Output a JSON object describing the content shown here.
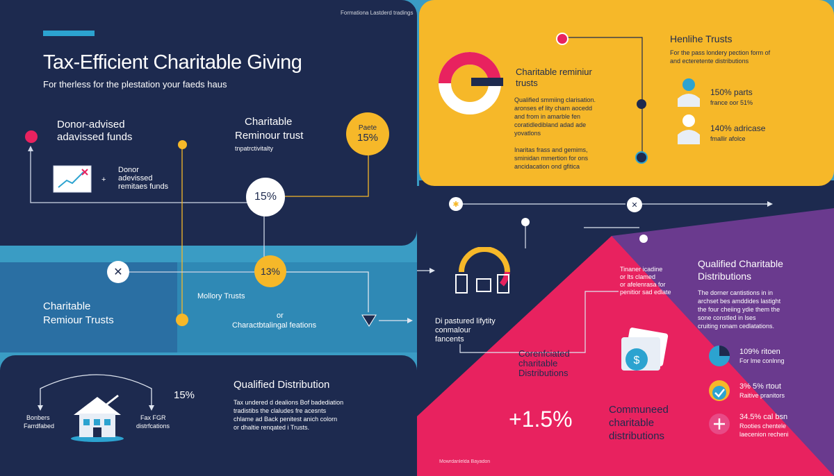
{
  "header": {
    "title": "Tax-Efficient Charitable Giving",
    "subtitle": "For therless for the plestation your faeds haus",
    "top_caption": "Formationa Lastderd tradings"
  },
  "left_panel": {
    "daf_title": [
      "Donor-advised",
      "adavissed funds"
    ],
    "daf_sub": [
      "Donor",
      "adevissed",
      "remitaes funds"
    ],
    "crt_title": [
      "Charitable",
      "Reminour trust"
    ],
    "crt_sub": "tnpatrctivitalty",
    "badge_top": [
      "Paete",
      "15%"
    ],
    "badge_center": "15%"
  },
  "middle_band": {
    "crt_title": [
      "Charitable",
      "Remiour Trusts"
    ],
    "badge": "13%",
    "note1": "Mollory Trusts",
    "note2": [
      "or",
      "Charactbtalingal feations"
    ]
  },
  "bottom_left": {
    "label_left": [
      "Bonbers",
      "Farrdfabed"
    ],
    "label_right": [
      "Fax FGR",
      "distrfcations"
    ],
    "percent": "15%",
    "qd_title": "Qualified Distribution",
    "qd_body": [
      "Tax undered d dealions Bof badediation",
      "tradistibs the claludes fre acesnts",
      "chlame ad Back penitest anich colorn",
      "or dhaltie renqated i Trusts."
    ]
  },
  "yellow_panel": {
    "crt_title": [
      "Charitable reminiur",
      "trusts"
    ],
    "crt_body": [
      "Qualified smmiing clarisation.",
      "aronses ef lity cham aocedd",
      "and from in amarble fen",
      "coratidledibland adad ade",
      "yovatlons"
    ],
    "crt_body2": [
      "Inaritas frass and gemims,",
      "sminidan mmertion for ons",
      "ancidacation ond gfitica"
    ],
    "ht_title": "Henlihe Trusts",
    "ht_body": [
      "For the pass londery pection form of",
      "and ecteretente distributions"
    ],
    "stat1": [
      "150% parts",
      "france oor 51%"
    ],
    "stat2": [
      "140% adricase",
      "fmallir afolce"
    ]
  },
  "center_lower": {
    "title": [
      "Di pastured lifytity",
      "conmalour",
      "fancents"
    ]
  },
  "pink_panel": {
    "note": [
      "Tinaner icadine",
      "or lts clamed",
      "or afelenrasa for",
      "penitior sad edlate"
    ],
    "ccd": [
      "Corenfciated",
      "charitable",
      "Distributions"
    ],
    "big_percent": "+1.5%",
    "comm": [
      "Communeed",
      "charitable",
      "distributions"
    ],
    "footer": "Mowrdanlelda Bayadon"
  },
  "purple_panel": {
    "title": [
      "Qualified Charitable",
      "Distributions"
    ],
    "body": [
      "The dorner cantistions in in",
      "archset bes amddides lastight",
      "the four cheiing ydie them the",
      "sone constled in lses",
      "cruiting ronam cedlatations."
    ],
    "items": [
      {
        "line1": "109% ritoen",
        "line2": "For lme conlnng"
      },
      {
        "line1": "3% 5% rtout",
        "line2": "Raitive pranitors"
      },
      {
        "line1": "34.5% cal bsn",
        "line2": "Rooties chentele",
        "line3": "laecenion recheni"
      }
    ]
  },
  "colors": {
    "navy": "#1e2a4e",
    "yellow": "#f6b829",
    "pink": "#e8225f",
    "purple": "#6a3a8e",
    "teal": "#3a9cc4",
    "accent_blue": "#2ca3d0"
  }
}
